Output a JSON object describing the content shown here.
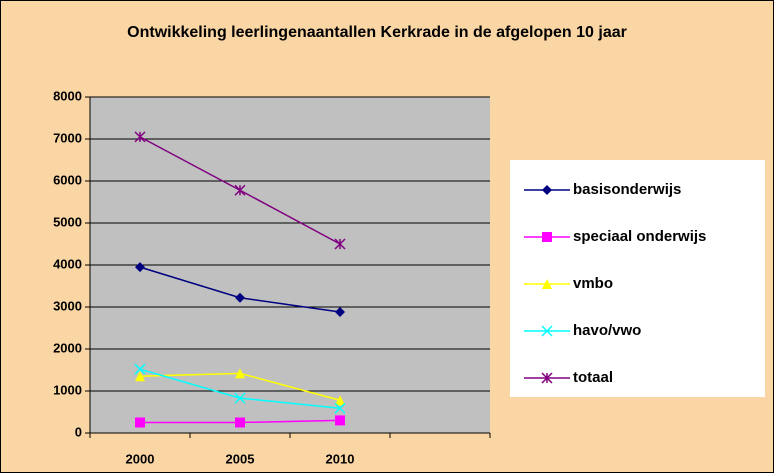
{
  "chart_data": {
    "type": "line",
    "title": "Ontwikkeling leerlingenaantallen Kerkrade in de afgelopen 10 jaar",
    "categories": [
      "2000",
      "2005",
      "2010",
      null
    ],
    "series": [
      {
        "name": "basisonderwijs",
        "color": "#000080",
        "marker": "diamond",
        "values": [
          3950,
          3220,
          2880,
          null
        ]
      },
      {
        "name": "speciaal onderwijs",
        "color": "#FF00FF",
        "marker": "square",
        "values": [
          250,
          250,
          300,
          null
        ]
      },
      {
        "name": "vmbo",
        "color": "#FFFF00",
        "marker": "triangle",
        "values": [
          1350,
          1420,
          780,
          null
        ]
      },
      {
        "name": "havo/vwo",
        "color": "#00FFFF",
        "marker": "x",
        "values": [
          1520,
          830,
          590,
          null
        ]
      },
      {
        "name": "totaal",
        "color": "#800080",
        "marker": "star",
        "values": [
          7050,
          5780,
          4500,
          null
        ]
      }
    ],
    "ylim": [
      0,
      8000
    ],
    "yticks": [
      0,
      1000,
      2000,
      3000,
      4000,
      5000,
      6000,
      7000,
      8000
    ],
    "grid": true,
    "legend": "right"
  }
}
